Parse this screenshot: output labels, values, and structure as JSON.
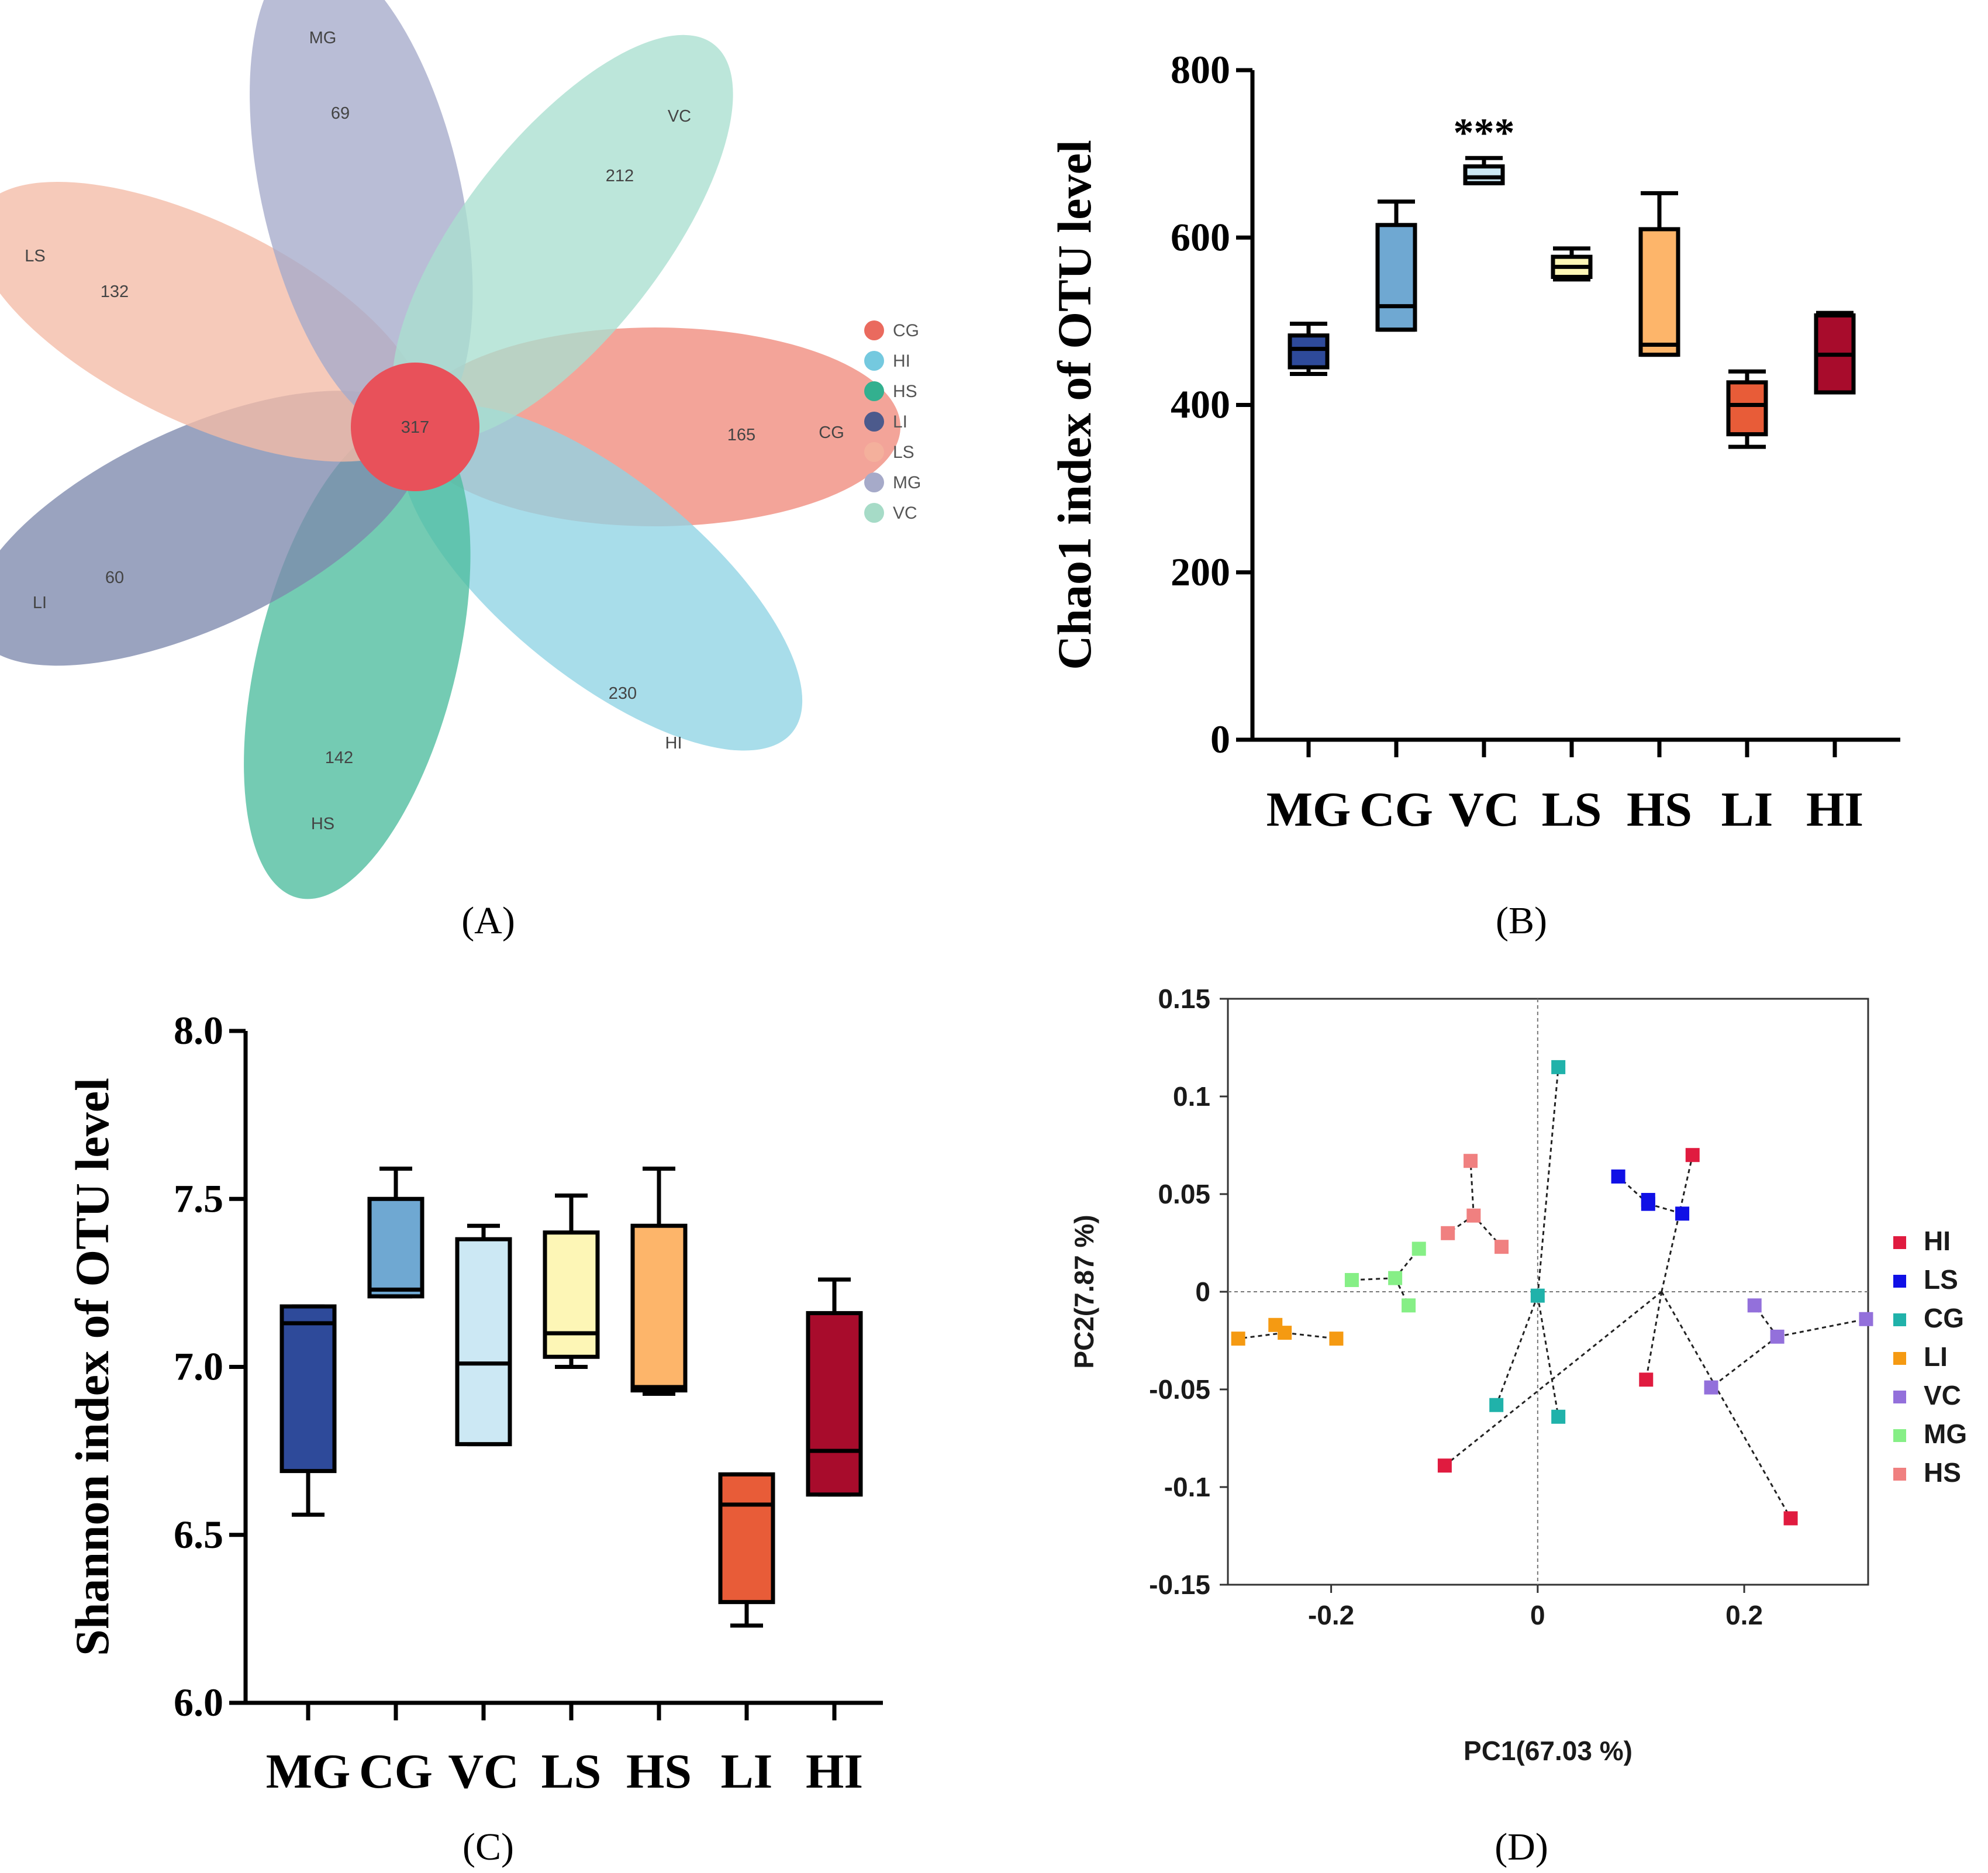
{
  "panels": {
    "a": {
      "label": "(A)",
      "bold": "A"
    },
    "b": {
      "label": "(B)",
      "bold": "B"
    },
    "c": {
      "label": "(C)",
      "bold": "C"
    },
    "d": {
      "label": "(D)",
      "bold": "D"
    }
  },
  "chart_data": [
    {
      "type": "venn-flower",
      "core_value": "317",
      "petals": [
        {
          "name": "CG",
          "value": "165",
          "color": "#ef8b7c"
        },
        {
          "name": "HI",
          "value": "230",
          "color": "#8fd3e4"
        },
        {
          "name": "HS",
          "value": "142",
          "color": "#4dbc9e"
        },
        {
          "name": "LI",
          "value": "60",
          "color": "#7e89ad"
        },
        {
          "name": "LS",
          "value": "132",
          "color": "#f4bba7"
        },
        {
          "name": "MG",
          "value": "69",
          "color": "#a5abcb"
        },
        {
          "name": "VC",
          "value": "212",
          "color": "#a9dfcf"
        }
      ],
      "core_color": "#e8515a",
      "legend": [
        "CG",
        "HI",
        "HS",
        "LI",
        "LS",
        "MG",
        "VC"
      ],
      "legend_colors": [
        "#ea6a5e",
        "#74c9df",
        "#33b08f",
        "#4c5a8c",
        "#f4b09c",
        "#a6aac9",
        "#a6dbc7"
      ]
    },
    {
      "type": "box",
      "ylabel": "Chao1 index of OTU level",
      "ylim": [
        0,
        800
      ],
      "yticks": [
        "0",
        "200",
        "400",
        "600",
        "800"
      ],
      "categories": [
        "MG",
        "CG",
        "VC",
        "LS",
        "HS",
        "LI",
        "HI"
      ],
      "colors": [
        "#2e4a9a",
        "#6fa8d2",
        "#cce8f4",
        "#fdf6b6",
        "#fdb56a",
        "#e85c38",
        "#a80c2c"
      ],
      "boxes": [
        {
          "min": 437,
          "q1": 445,
          "median": 467,
          "q3": 483,
          "max": 497
        },
        {
          "min": 490,
          "q1": 490,
          "median": 518,
          "q3": 615,
          "max": 643
        },
        {
          "min": 665,
          "q1": 665,
          "median": 672,
          "q3": 685,
          "max": 695
        },
        {
          "min": 550,
          "q1": 553,
          "median": 565,
          "q3": 577,
          "max": 587
        },
        {
          "min": 460,
          "q1": 460,
          "median": 472,
          "q3": 610,
          "max": 653
        },
        {
          "min": 350,
          "q1": 365,
          "median": 400,
          "q3": 427,
          "max": 440
        },
        {
          "min": 415,
          "q1": 415,
          "median": 460,
          "q3": 507,
          "max": 510
        }
      ],
      "annotation": {
        "text": "***",
        "category": "VC"
      }
    },
    {
      "type": "box",
      "ylabel": "Shannon index of OTU level",
      "ylim": [
        6.0,
        8.0
      ],
      "yticks": [
        "6.0",
        "6.5",
        "7.0",
        "7.5",
        "8.0"
      ],
      "categories": [
        "MG",
        "CG",
        "VC",
        "LS",
        "HS",
        "LI",
        "HI"
      ],
      "colors": [
        "#2e4a9a",
        "#6fa8d2",
        "#cce8f4",
        "#fdf6b6",
        "#fdb56a",
        "#e85c38",
        "#a80c2c"
      ],
      "boxes": [
        {
          "min": 6.56,
          "q1": 6.69,
          "median": 7.13,
          "q3": 7.18,
          "max": 7.18
        },
        {
          "min": 7.21,
          "q1": 7.21,
          "median": 7.23,
          "q3": 7.5,
          "max": 7.59
        },
        {
          "min": 6.77,
          "q1": 6.77,
          "median": 7.01,
          "q3": 7.38,
          "max": 7.42
        },
        {
          "min": 7.0,
          "q1": 7.03,
          "median": 7.1,
          "q3": 7.4,
          "max": 7.51
        },
        {
          "min": 6.92,
          "q1": 6.93,
          "median": 6.94,
          "q3": 7.42,
          "max": 7.59
        },
        {
          "min": 6.23,
          "q1": 6.3,
          "median": 6.59,
          "q3": 6.68,
          "max": 6.68
        },
        {
          "min": 6.62,
          "q1": 6.62,
          "median": 6.75,
          "q3": 7.16,
          "max": 7.26
        }
      ]
    },
    {
      "type": "scatter",
      "xlabel": "PC1(67.03 %)",
      "ylabel": "PC2(7.87 %)",
      "xlim": [
        -0.3,
        0.32
      ],
      "ylim": [
        -0.15,
        0.15
      ],
      "xticks": [
        {
          "value": -0.2,
          "label": "-0.2"
        },
        {
          "value": 0,
          "label": "0"
        },
        {
          "value": 0.2,
          "label": "0.2"
        }
      ],
      "yticks": [
        {
          "value": 0.15,
          "label": "0.15"
        },
        {
          "value": 0.1,
          "label": "0.1"
        },
        {
          "value": 0.05,
          "label": "0.05"
        },
        {
          "value": 0,
          "label": "0"
        },
        {
          "value": -0.05,
          "label": "-0.05"
        },
        {
          "value": -0.1,
          "label": "-0.1"
        },
        {
          "value": -0.15,
          "label": "-0.15"
        }
      ],
      "series": [
        {
          "name": "HI",
          "color": "#e01b3f",
          "centroid": [
            0.12,
            0.0
          ],
          "points": [
            [
              0.15,
              0.07
            ],
            [
              0.105,
              -0.045
            ],
            [
              -0.09,
              -0.089
            ],
            [
              0.245,
              -0.116
            ]
          ]
        },
        {
          "name": "LS",
          "color": "#1010e6",
          "centroid": [
            0.107,
            0.045
          ],
          "points": [
            [
              0.078,
              0.059
            ],
            [
              0.107,
              0.047
            ],
            [
              0.107,
              0.045
            ],
            [
              0.14,
              0.04
            ]
          ]
        },
        {
          "name": "CG",
          "color": "#20b2aa",
          "centroid": [
            0.0,
            -0.002
          ],
          "points": [
            [
              0.02,
              0.115
            ],
            [
              -0.04,
              -0.058
            ],
            [
              0.02,
              -0.064
            ],
            [
              0.0,
              -0.002
            ]
          ]
        },
        {
          "name": "LI",
          "color": "#f59a12",
          "centroid": [
            -0.245,
            -0.021
          ],
          "points": [
            [
              -0.29,
              -0.024
            ],
            [
              -0.254,
              -0.017
            ],
            [
              -0.245,
              -0.021
            ],
            [
              -0.195,
              -0.024
            ]
          ]
        },
        {
          "name": "VC",
          "color": "#9370db",
          "centroid": [
            0.232,
            -0.023
          ],
          "points": [
            [
              0.21,
              -0.007
            ],
            [
              0.318,
              -0.014
            ],
            [
              0.168,
              -0.049
            ],
            [
              0.232,
              -0.023
            ]
          ]
        },
        {
          "name": "MG",
          "color": "#86ef86",
          "centroid": [
            -0.138,
            0.007
          ],
          "points": [
            [
              -0.18,
              0.006
            ],
            [
              -0.138,
              0.007
            ],
            [
              -0.125,
              -0.007
            ],
            [
              -0.115,
              0.022
            ]
          ]
        },
        {
          "name": "HS",
          "color": "#f08080",
          "centroid": [
            -0.062,
            0.039
          ],
          "points": [
            [
              -0.065,
              0.067
            ],
            [
              -0.062,
              0.039
            ],
            [
              -0.087,
              0.03
            ],
            [
              -0.035,
              0.023
            ]
          ]
        }
      ]
    }
  ]
}
